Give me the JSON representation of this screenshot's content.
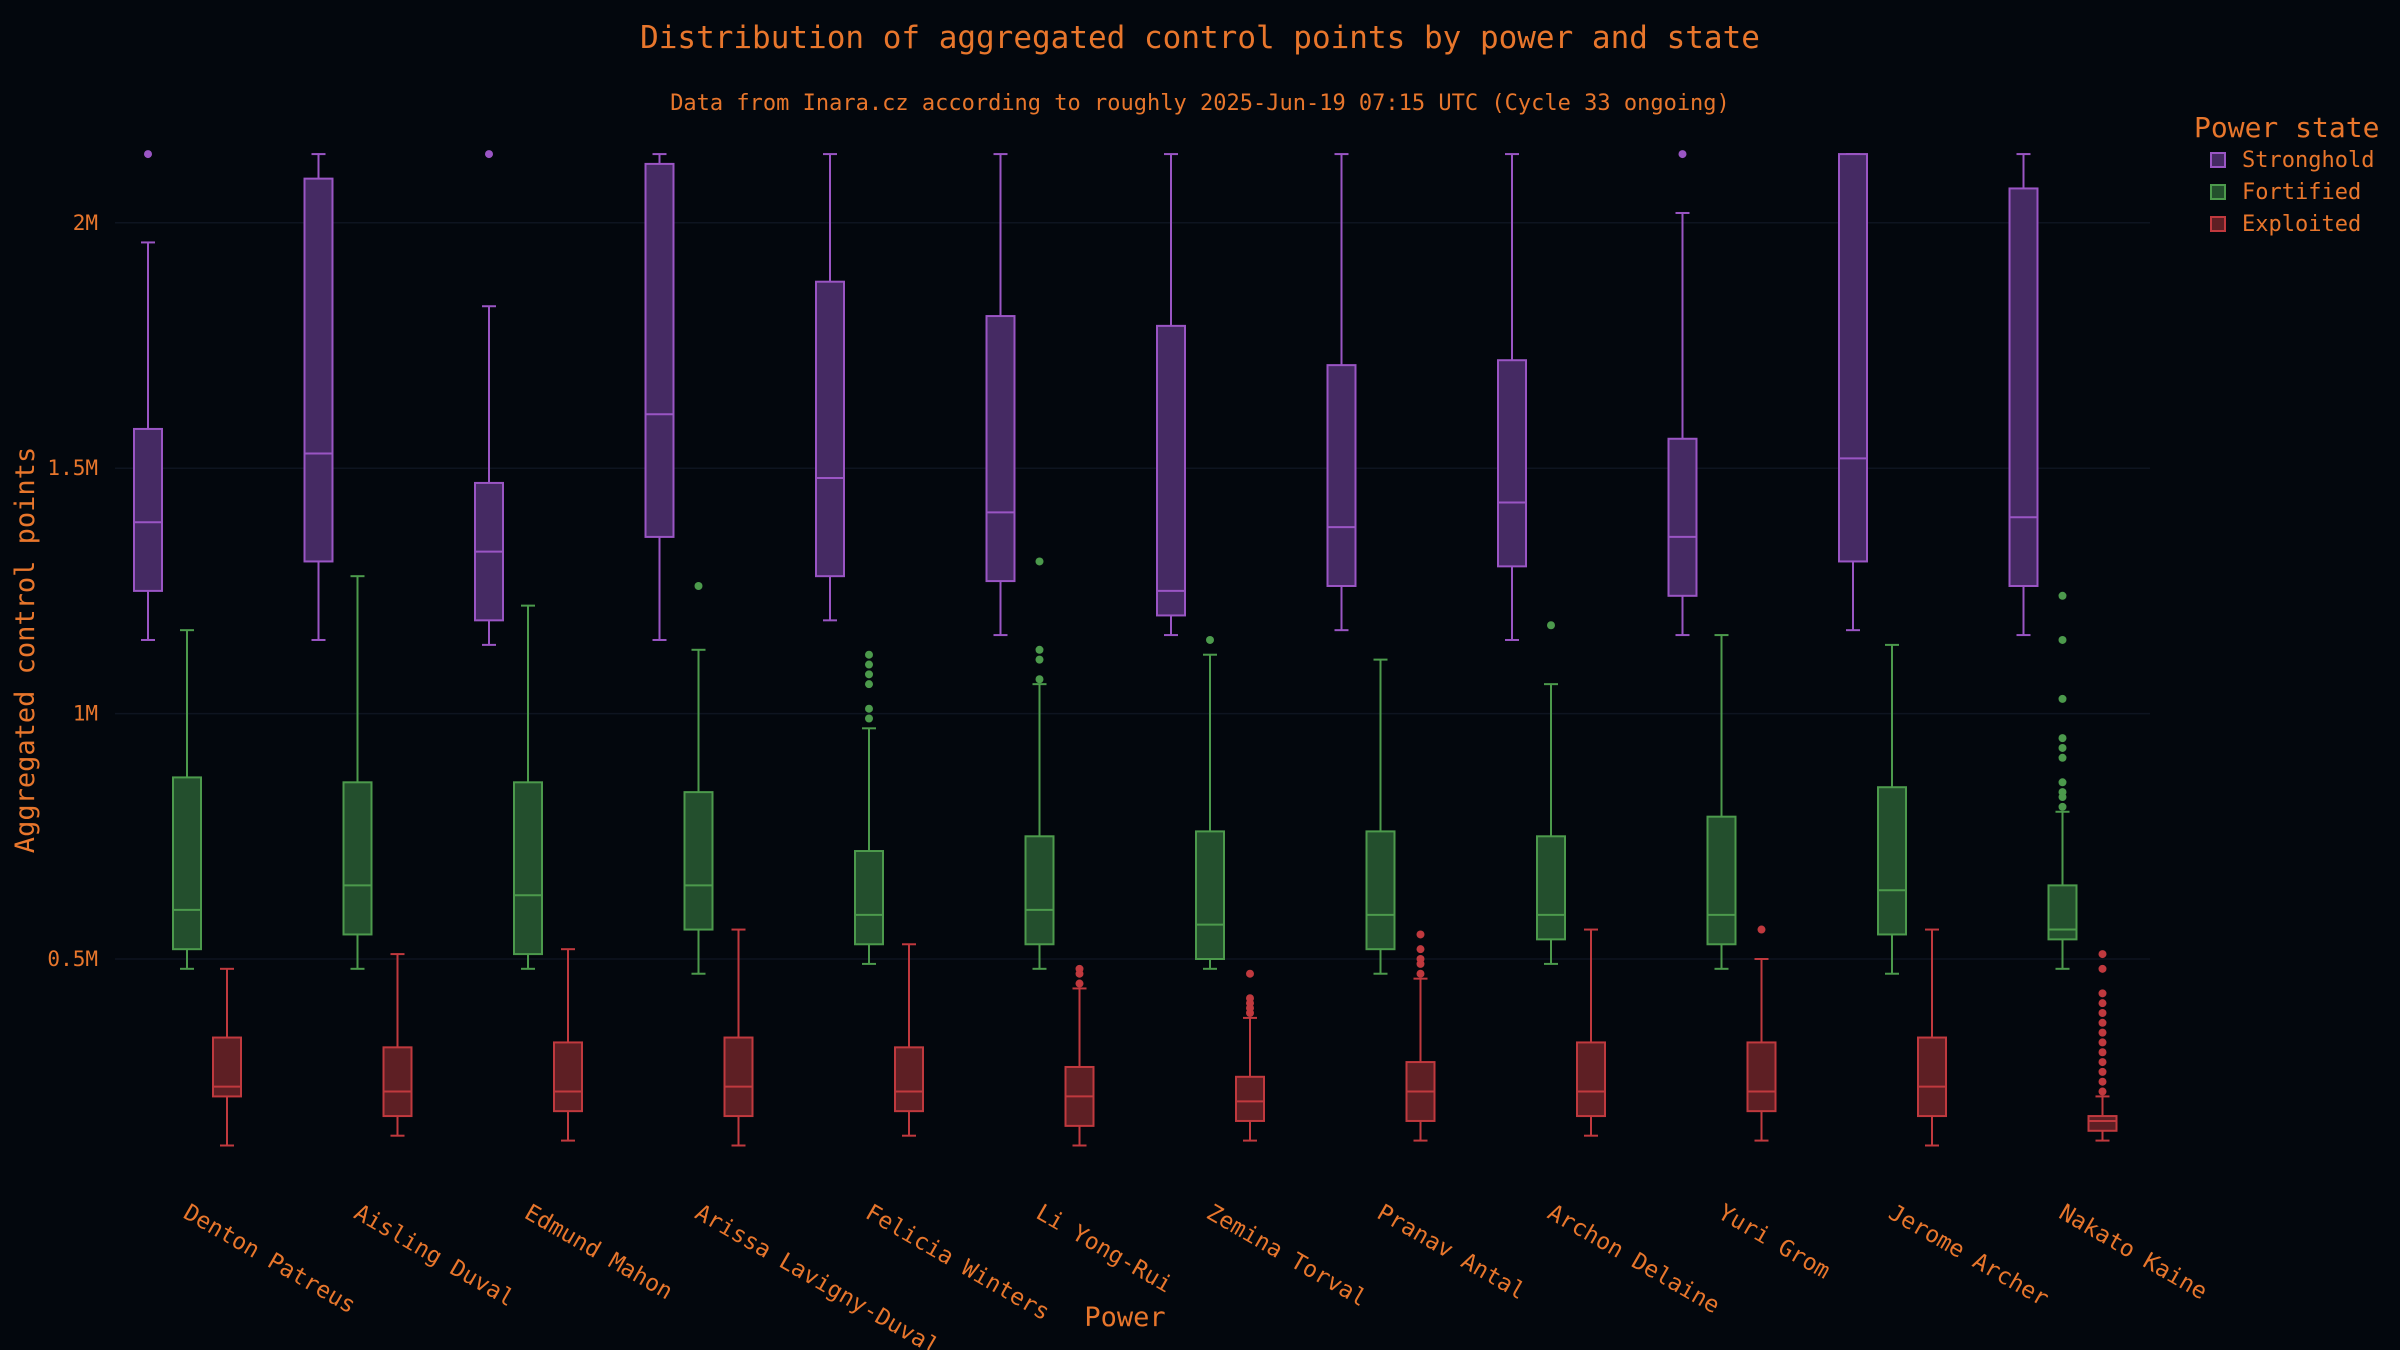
{
  "colors": {
    "background": "#03070d",
    "text": "#e8762c",
    "gridline": "#0e1420",
    "stronghold_stroke": "#9a55c4",
    "stronghold_fill": "#452a63",
    "fortified_stroke": "#4c9a4c",
    "fortified_fill": "#234f2d",
    "exploited_stroke": "#c0393e",
    "exploited_fill": "#5e1f24"
  },
  "chart_data": {
    "type": "box",
    "title": "Distribution of aggregated control points by power and state",
    "subtitle": "Data from Inara.cz according to roughly 2025-Jun-19 07:15 UTC (Cycle 33 ongoing)",
    "xlabel": "Power",
    "ylabel": "Aggregated control points",
    "yticks": [
      {
        "value": 500000,
        "label": "0.5M"
      },
      {
        "value": 1000000,
        "label": "1M"
      },
      {
        "value": 1500000,
        "label": "1.5M"
      },
      {
        "value": 2000000,
        "label": "2M"
      }
    ],
    "ylim": [
      -100000,
      2270000
    ],
    "legend": {
      "title": "Power state",
      "position": "top-right"
    },
    "categories": [
      "Denton Patreus",
      "Aisling Duval",
      "Edmund Mahon",
      "Arissa Lavigny-Duval",
      "Felicia Winters",
      "Li Yong-Rui",
      "Zemina Torval",
      "Pranav Antal",
      "Archon Delaine",
      "Yuri Grom",
      "Jerome Archer",
      "Nakato Kaine"
    ],
    "series": [
      {
        "name": "Stronghold",
        "boxes": [
          {
            "min": 1150000,
            "q1": 1250000,
            "median": 1390000,
            "q3": 1580000,
            "max": 1960000,
            "outliers": [
              2140000
            ]
          },
          {
            "min": 1150000,
            "q1": 1310000,
            "median": 1530000,
            "q3": 2090000,
            "max": 2140000,
            "outliers": []
          },
          {
            "min": 1140000,
            "q1": 1190000,
            "median": 1330000,
            "q3": 1470000,
            "max": 1830000,
            "outliers": [
              2140000
            ]
          },
          {
            "min": 1150000,
            "q1": 1360000,
            "median": 1610000,
            "q3": 2120000,
            "max": 2140000,
            "outliers": []
          },
          {
            "min": 1190000,
            "q1": 1280000,
            "median": 1480000,
            "q3": 1880000,
            "max": 2140000,
            "outliers": []
          },
          {
            "min": 1160000,
            "q1": 1270000,
            "median": 1410000,
            "q3": 1810000,
            "max": 2140000,
            "outliers": []
          },
          {
            "min": 1160000,
            "q1": 1200000,
            "median": 1250000,
            "q3": 1790000,
            "max": 2140000,
            "outliers": []
          },
          {
            "min": 1170000,
            "q1": 1260000,
            "median": 1380000,
            "q3": 1710000,
            "max": 2140000,
            "outliers": []
          },
          {
            "min": 1150000,
            "q1": 1300000,
            "median": 1430000,
            "q3": 1720000,
            "max": 2140000,
            "outliers": []
          },
          {
            "min": 1160000,
            "q1": 1240000,
            "median": 1360000,
            "q3": 1560000,
            "max": 2020000,
            "outliers": [
              2140000
            ]
          },
          {
            "min": 1170000,
            "q1": 1310000,
            "median": 1520000,
            "q3": 2140000,
            "max": 2140000,
            "outliers": []
          },
          {
            "min": 1160000,
            "q1": 1260000,
            "median": 1400000,
            "q3": 2070000,
            "max": 2140000,
            "outliers": []
          }
        ]
      },
      {
        "name": "Fortified",
        "boxes": [
          {
            "min": 480000,
            "q1": 520000,
            "median": 600000,
            "q3": 870000,
            "max": 1170000,
            "outliers": []
          },
          {
            "min": 480000,
            "q1": 550000,
            "median": 650000,
            "q3": 860000,
            "max": 1280000,
            "outliers": []
          },
          {
            "min": 480000,
            "q1": 510000,
            "median": 630000,
            "q3": 860000,
            "max": 1220000,
            "outliers": []
          },
          {
            "min": 470000,
            "q1": 560000,
            "median": 650000,
            "q3": 840000,
            "max": 1130000,
            "outliers": [
              1260000
            ]
          },
          {
            "min": 490000,
            "q1": 530000,
            "median": 590000,
            "q3": 720000,
            "max": 970000,
            "outliers": [
              990000,
              1010000,
              1060000,
              1080000,
              1100000,
              1120000
            ]
          },
          {
            "min": 480000,
            "q1": 530000,
            "median": 600000,
            "q3": 750000,
            "max": 1060000,
            "outliers": [
              1070000,
              1110000,
              1130000,
              1310000
            ]
          },
          {
            "min": 480000,
            "q1": 500000,
            "median": 570000,
            "q3": 760000,
            "max": 1120000,
            "outliers": [
              1150000
            ]
          },
          {
            "min": 470000,
            "q1": 520000,
            "median": 590000,
            "q3": 760000,
            "max": 1110000,
            "outliers": []
          },
          {
            "min": 490000,
            "q1": 540000,
            "median": 590000,
            "q3": 750000,
            "max": 1060000,
            "outliers": [
              1180000
            ]
          },
          {
            "min": 480000,
            "q1": 530000,
            "median": 590000,
            "q3": 790000,
            "max": 1160000,
            "outliers": []
          },
          {
            "min": 470000,
            "q1": 550000,
            "median": 640000,
            "q3": 850000,
            "max": 1140000,
            "outliers": []
          },
          {
            "min": 480000,
            "q1": 540000,
            "median": 560000,
            "q3": 650000,
            "max": 800000,
            "outliers": [
              810000,
              830000,
              840000,
              860000,
              910000,
              930000,
              950000,
              1030000,
              1150000,
              1240000
            ]
          }
        ]
      },
      {
        "name": "Exploited",
        "boxes": [
          {
            "min": 120000,
            "q1": 220000,
            "median": 240000,
            "q3": 340000,
            "max": 480000,
            "outliers": []
          },
          {
            "min": 140000,
            "q1": 180000,
            "median": 230000,
            "q3": 320000,
            "max": 510000,
            "outliers": []
          },
          {
            "min": 130000,
            "q1": 190000,
            "median": 230000,
            "q3": 330000,
            "max": 520000,
            "outliers": []
          },
          {
            "min": 120000,
            "q1": 180000,
            "median": 240000,
            "q3": 340000,
            "max": 560000,
            "outliers": []
          },
          {
            "min": 140000,
            "q1": 190000,
            "median": 230000,
            "q3": 320000,
            "max": 530000,
            "outliers": []
          },
          {
            "min": 120000,
            "q1": 160000,
            "median": 220000,
            "q3": 280000,
            "max": 440000,
            "outliers": [
              450000,
              470000,
              480000
            ]
          },
          {
            "min": 130000,
            "q1": 170000,
            "median": 210000,
            "q3": 260000,
            "max": 380000,
            "outliers": [
              390000,
              400000,
              410000,
              420000,
              470000
            ]
          },
          {
            "min": 130000,
            "q1": 170000,
            "median": 230000,
            "q3": 290000,
            "max": 460000,
            "outliers": [
              470000,
              490000,
              500000,
              520000,
              550000
            ]
          },
          {
            "min": 140000,
            "q1": 180000,
            "median": 230000,
            "q3": 330000,
            "max": 560000,
            "outliers": []
          },
          {
            "min": 130000,
            "q1": 190000,
            "median": 230000,
            "q3": 330000,
            "max": 500000,
            "outliers": [
              560000
            ]
          },
          {
            "min": 120000,
            "q1": 180000,
            "median": 240000,
            "q3": 340000,
            "max": 560000,
            "outliers": []
          },
          {
            "min": 130000,
            "q1": 150000,
            "median": 170000,
            "q3": 180000,
            "max": 220000,
            "outliers": [
              230000,
              250000,
              270000,
              290000,
              310000,
              330000,
              350000,
              370000,
              390000,
              410000,
              430000,
              480000,
              510000
            ]
          }
        ]
      }
    ]
  }
}
